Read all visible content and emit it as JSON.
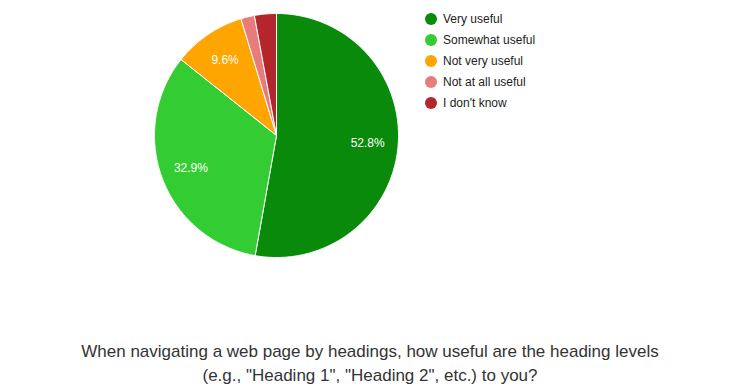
{
  "chart_data": {
    "type": "pie",
    "title": "When navigating a web page by headings, how useful are the heading levels (e.g., \"Heading 1\", \"Heading 2\", etc.) to you?",
    "categories": [
      "Very useful",
      "Somewhat useful",
      "Not very useful",
      "Not at all useful",
      "I don't know"
    ],
    "values": [
      52.8,
      32.9,
      9.6,
      1.8,
      2.9
    ],
    "value_labels": [
      "52.8%",
      "32.9%",
      "9.6%",
      null,
      null
    ],
    "colors": [
      "#0a8a0a",
      "#33cc33",
      "#ffa500",
      "#ea7b7b",
      "#b3262b"
    ],
    "data_labels": true,
    "legend": "right",
    "tick_labels": false
  }
}
